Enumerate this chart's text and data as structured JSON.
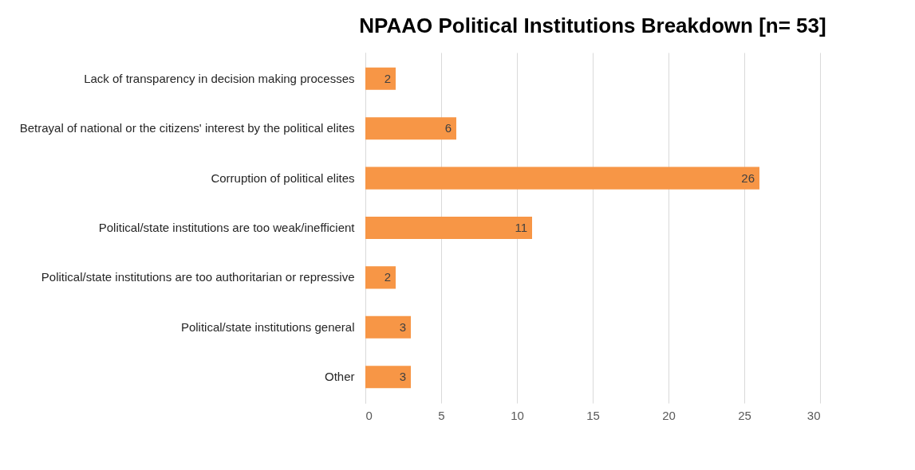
{
  "chart_data": {
    "type": "bar",
    "orientation": "horizontal",
    "title": "NPAAO Political Institutions Breakdown [n= 53]",
    "categories": [
      "Lack of transparency in decision making processes",
      "Betrayal of national or the citizens' interest by  the political elites",
      "Corruption of political elites",
      "Political/state institutions are too weak/inefficient",
      "Political/state institutions are too authoritarian or repressive",
      "Political/state institutions general",
      "Other"
    ],
    "values": [
      2,
      6,
      26,
      11,
      2,
      3,
      3
    ],
    "color": "#f79646",
    "xlim": [
      0,
      30
    ],
    "xticks": [
      0,
      5,
      10,
      15,
      20,
      25,
      30
    ],
    "grid": "x",
    "data_labels": true
  }
}
